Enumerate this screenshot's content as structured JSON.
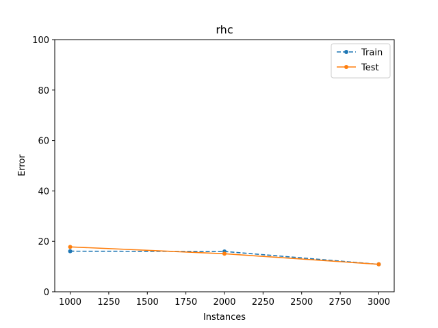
{
  "chart_data": {
    "type": "line",
    "title": "rhc",
    "xlabel": "Instances",
    "ylabel": "Error",
    "xlim": [
      900,
      3100
    ],
    "ylim": [
      0,
      100
    ],
    "xticks": [
      1000,
      1250,
      1500,
      1750,
      2000,
      2250,
      2500,
      2750,
      3000
    ],
    "yticks": [
      0,
      20,
      40,
      60,
      80,
      100
    ],
    "grid": false,
    "legend_position": "top-right",
    "x": [
      1000,
      2000,
      3000
    ],
    "series": [
      {
        "name": "Train",
        "values": [
          16.1,
          16.0,
          10.9
        ],
        "color": "#1f77b4",
        "style": "dashed",
        "marker": "circle"
      },
      {
        "name": "Test",
        "values": [
          17.8,
          15.1,
          10.9
        ],
        "color": "#ff7f0e",
        "style": "solid",
        "marker": "circle"
      }
    ]
  }
}
